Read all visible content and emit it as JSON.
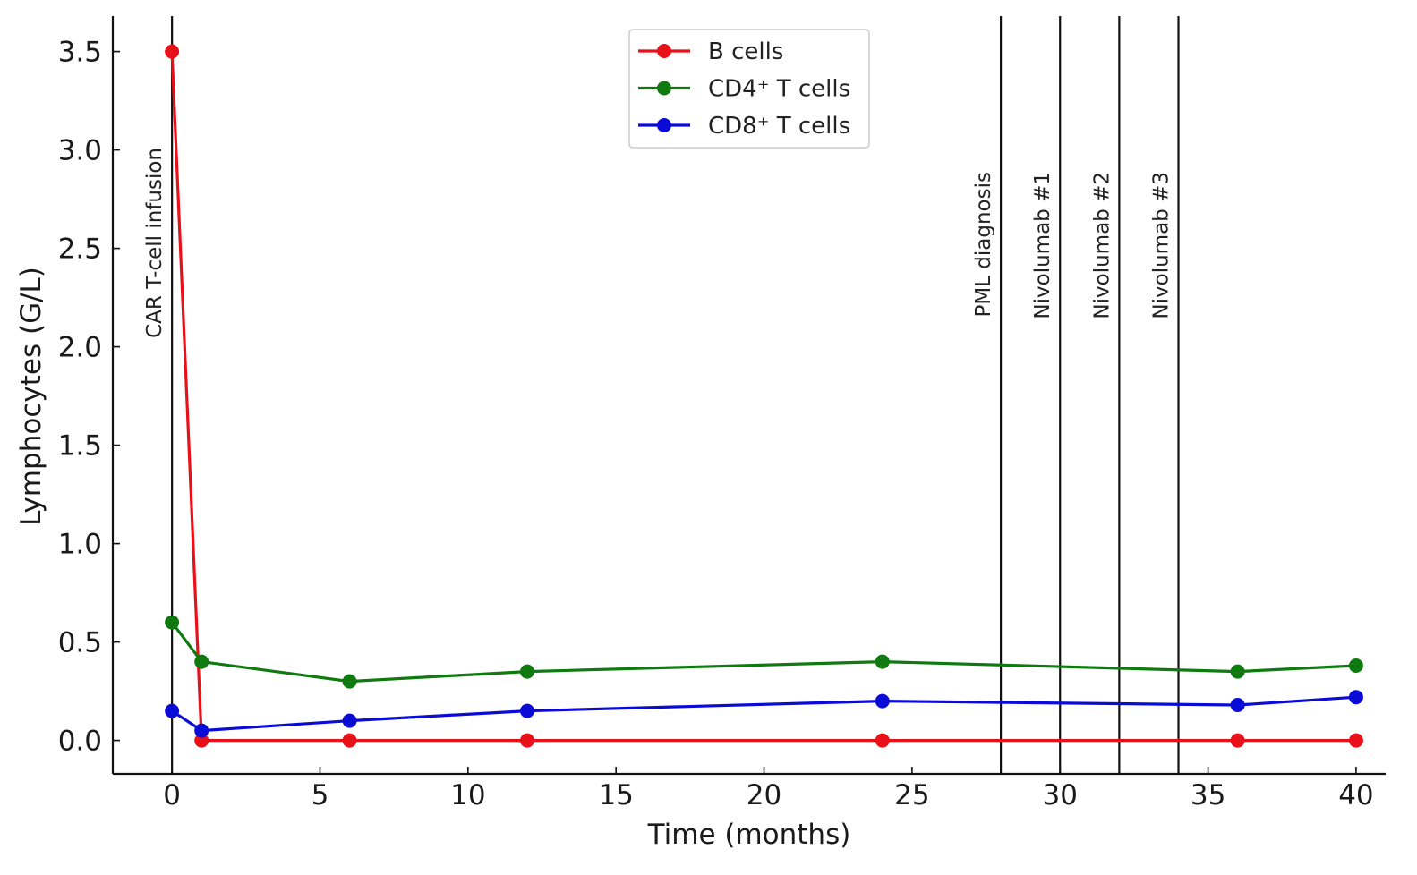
{
  "chart_data": {
    "type": "line",
    "title": "",
    "xlabel": "Time (months)",
    "ylabel": "Lymphocytes (G/L)",
    "xlim": [
      -2,
      41
    ],
    "ylim": [
      -0.17,
      3.68
    ],
    "xticks": [
      0,
      5,
      10,
      15,
      20,
      25,
      30,
      35,
      40
    ],
    "yticks": [
      0.0,
      0.5,
      1.0,
      1.5,
      2.0,
      2.5,
      3.0,
      3.5
    ],
    "xtick_labels": [
      "0",
      "5",
      "10",
      "15",
      "20",
      "25",
      "30",
      "35",
      "40"
    ],
    "ytick_labels": [
      "0.0",
      "0.5",
      "1.0",
      "1.5",
      "2.0",
      "2.5",
      "3.0",
      "3.5"
    ],
    "grid": false,
    "legend_position": "top-center",
    "series": [
      {
        "name": "B cells",
        "color": "#e8111a",
        "x": [
          0,
          1,
          6,
          12,
          24,
          36,
          40
        ],
        "values": [
          3.5,
          0.0,
          0.0,
          0.0,
          0.0,
          0.0,
          0.0
        ]
      },
      {
        "name": "CD4⁺ T cells",
        "color": "#0f7a0f",
        "x": [
          0,
          1,
          6,
          12,
          24,
          36,
          40
        ],
        "values": [
          0.6,
          0.4,
          0.3,
          0.35,
          0.4,
          0.35,
          0.38
        ]
      },
      {
        "name": "CD8⁺ T cells",
        "color": "#0b0bd8",
        "x": [
          0,
          1,
          6,
          12,
          24,
          36,
          40
        ],
        "values": [
          0.15,
          0.05,
          0.1,
          0.15,
          0.2,
          0.18,
          0.22
        ]
      }
    ],
    "annotations": [
      {
        "x": 0,
        "label": "CAR T-cell infusion"
      },
      {
        "x": 28,
        "label": "PML diagnosis"
      },
      {
        "x": 30,
        "label": "Nivolumab #1"
      },
      {
        "x": 32,
        "label": "Nivolumab #2"
      },
      {
        "x": 34,
        "label": "Nivolumab #3"
      }
    ]
  }
}
